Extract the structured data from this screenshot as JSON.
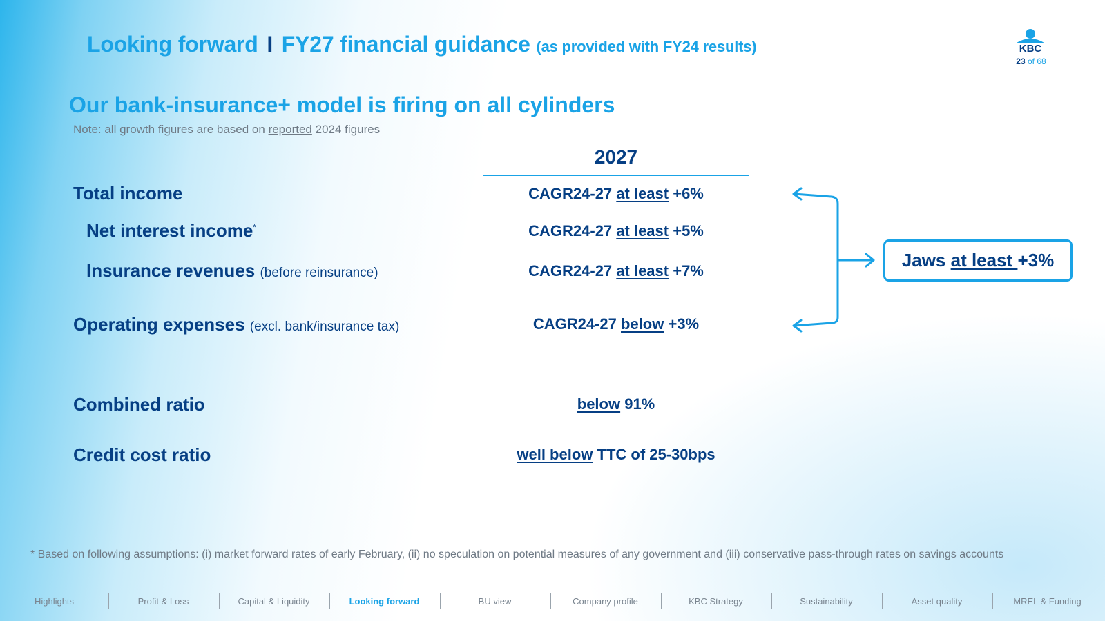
{
  "header": {
    "title_main": "Looking forward",
    "title_separator": "I",
    "title_section": "FY27 financial guidance",
    "title_note": "(as provided with FY24 results)",
    "page_current": "23",
    "page_of": "of 68",
    "logo_text": "KBC",
    "brand_colors": {
      "primary_blue": "#063f84",
      "accent_blue": "#1aa3e6"
    }
  },
  "headline": "Our bank-insurance+ model is firing on all cylinders",
  "note": {
    "before": "Note: all growth figures are based on ",
    "underlined": "reported",
    "after": " 2024 figures"
  },
  "column_header": "2027",
  "rows": [
    {
      "label": "Total income",
      "label_note": "",
      "value_prefix": "CAGR24-27 ",
      "value_underlined": "at least",
      "value_suffix": " +6%"
    },
    {
      "label": "Net interest income",
      "label_sup": "*",
      "value_prefix": "CAGR24-27 ",
      "value_underlined": "at least",
      "value_suffix": " +5%"
    },
    {
      "label": "Insurance revenues",
      "label_note": "(before reinsurance)",
      "value_prefix": "CAGR24-27 ",
      "value_underlined": "at least",
      "value_suffix": " +7%"
    },
    {
      "label": "Operating expenses",
      "label_note": "(excl. bank/insurance tax)",
      "value_prefix": "CAGR24-27 ",
      "value_underlined": "below",
      "value_suffix": " +3%"
    },
    {
      "label": "Combined ratio",
      "value_prefix": "",
      "value_underlined": "below",
      "value_suffix": " 91%"
    },
    {
      "label": "Credit cost ratio",
      "value_prefix": "",
      "value_underlined": "well below",
      "value_suffix": " TTC of 25-30bps"
    }
  ],
  "jaws": {
    "prefix": "Jaws ",
    "underlined": "at least ",
    "suffix": "+3%"
  },
  "footnote": "* Based on following assumptions: (i) market forward rates of early February, (ii) no speculation on potential measures of any government and (iii) conservative pass-through rates on savings accounts",
  "nav": {
    "items": [
      {
        "label": "Highlights"
      },
      {
        "label": "Profit & Loss"
      },
      {
        "label": "Capital & Liquidity"
      },
      {
        "label": "Looking forward"
      },
      {
        "label": "BU view"
      },
      {
        "label": "Company profile"
      },
      {
        "label": "KBC Strategy"
      },
      {
        "label": "Sustainability"
      },
      {
        "label": "Asset quality"
      },
      {
        "label": "MREL & Funding"
      }
    ],
    "active_label": "Looking forward"
  }
}
